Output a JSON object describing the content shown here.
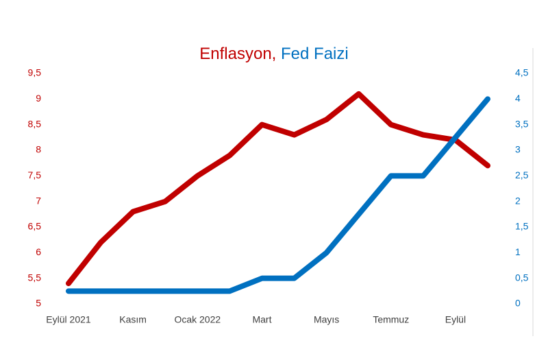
{
  "chart_data": {
    "type": "line",
    "title_separator": ",",
    "categories": [
      "Eylül 2021",
      null,
      "Kasım",
      null,
      "Ocak 2022",
      null,
      "Mart",
      null,
      "Mayıs",
      null,
      "Temmuz",
      null,
      "Eylül",
      null
    ],
    "series": [
      {
        "name": "Enflasyon",
        "color": "#c00000",
        "values": [
          5.4,
          6.2,
          6.8,
          7.0,
          7.5,
          7.9,
          8.5,
          8.3,
          8.6,
          9.1,
          8.5,
          8.3,
          8.2,
          7.7
        ]
      },
      {
        "name": "Fed Faizi",
        "color": "#0070c0",
        "axis": "y2",
        "values": [
          0.25,
          0.25,
          0.25,
          0.25,
          0.25,
          0.25,
          0.5,
          0.5,
          1.0,
          1.75,
          2.5,
          2.5,
          3.25,
          4.0
        ]
      }
    ],
    "ylim": [
      5,
      9.5
    ],
    "yticks": [
      5,
      {
        "value": 5.5,
        "label": "5,5"
      },
      6,
      {
        "value": 6.5,
        "label": "6,5"
      },
      7,
      {
        "value": 7.5,
        "label": "7,5"
      },
      8,
      {
        "value": 8.5,
        "label": "8,5"
      },
      9,
      {
        "value": 9.5,
        "label": "9,5"
      }
    ],
    "y2lim": [
      0,
      4.5
    ],
    "y2ticks": [
      0,
      {
        "value": 0.5,
        "label": "0,5"
      },
      1,
      {
        "value": 1.5,
        "label": "1,5"
      },
      2,
      {
        "value": 2.5,
        "label": "2,5"
      },
      3,
      {
        "value": 3.5,
        "label": "3,5"
      },
      4,
      {
        "value": 4.5,
        "label": "4,5"
      }
    ],
    "grid": false
  }
}
